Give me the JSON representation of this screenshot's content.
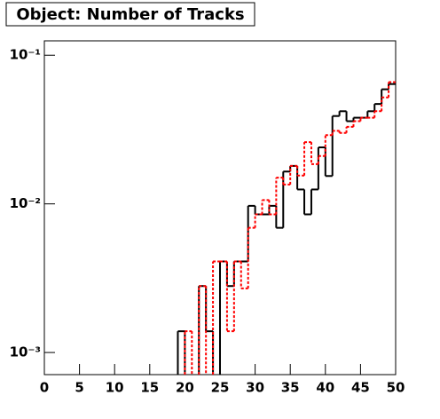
{
  "chart_data": {
    "type": "histogram",
    "title": "Object: Number of Tracks",
    "bins": [
      0,
      1,
      2,
      3,
      4,
      5,
      6,
      7,
      8,
      9,
      10,
      11,
      12,
      13,
      14,
      15,
      16,
      17,
      18,
      19,
      20,
      21,
      22,
      23,
      24,
      25,
      26,
      27,
      28,
      29,
      30,
      31,
      32,
      33,
      34,
      35,
      36,
      37,
      38,
      39,
      40,
      41,
      42,
      43,
      44,
      45,
      46,
      47,
      48,
      49,
      50
    ],
    "series": [
      {
        "color": "#000000",
        "style": "solid",
        "values": [
          null,
          null,
          null,
          null,
          null,
          null,
          null,
          null,
          null,
          null,
          null,
          null,
          null,
          null,
          null,
          null,
          null,
          null,
          null,
          0.00139,
          null,
          null,
          0.0028,
          0.00139,
          null,
          0.0041,
          0.0028,
          0.0041,
          0.0041,
          0.0097,
          0.0085,
          0.0085,
          0.0097,
          0.0069,
          0.0165,
          0.018,
          0.0125,
          0.0085,
          0.0125,
          0.024,
          0.0154,
          0.039,
          0.042,
          0.036,
          0.038,
          0.038,
          0.042,
          0.047,
          0.059,
          0.064
        ]
      },
      {
        "color": "#ff0000",
        "style": "dashed",
        "values": [
          null,
          null,
          null,
          null,
          null,
          null,
          null,
          null,
          null,
          null,
          null,
          null,
          null,
          null,
          null,
          null,
          null,
          null,
          null,
          null,
          0.00139,
          null,
          0.0028,
          null,
          0.0041,
          0.0041,
          0.00139,
          0.0041,
          0.0027,
          0.0069,
          0.0085,
          0.0106,
          0.0085,
          0.015,
          0.0135,
          0.018,
          0.0155,
          0.026,
          0.0185,
          0.021,
          0.029,
          0.031,
          0.03,
          0.033,
          0.036,
          0.038,
          0.038,
          0.042,
          0.052,
          0.066
        ]
      }
    ],
    "xlim": [
      0,
      50
    ],
    "xticks": [
      0,
      5,
      10,
      15,
      20,
      25,
      30,
      35,
      40,
      45,
      50
    ],
    "ylim": [
      0.00071,
      0.125
    ],
    "ylog": true,
    "yticks": [
      {
        "value": 0.001,
        "label": "10⁻³"
      },
      {
        "value": 0.01,
        "label": "10⁻²"
      },
      {
        "value": 0.1,
        "label": "10⁻¹"
      }
    ]
  }
}
